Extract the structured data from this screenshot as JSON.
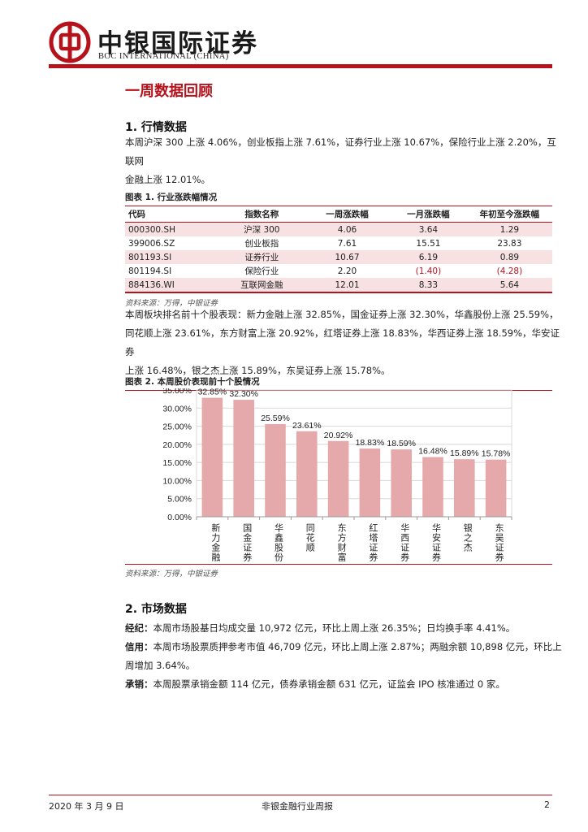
{
  "header": {
    "brand_cn": "中银国际证券",
    "brand_en": "BOC INTERNATIONAL (CHINA)"
  },
  "colors": {
    "accent": "#b5121b",
    "bar": "#e6a9ab",
    "row_shade": "#f8e1e2"
  },
  "section_title": "一周数据回顾",
  "market": {
    "heading": "1. 行情数据",
    "summary": "本周沪深 300 上涨 4.06%，创业板指上涨 7.61%，证券行业上涨 10.67%，保险行业上涨 2.20%，互联网金融上涨 12.01%。",
    "summary_line1": "本周沪深 300 上涨 4.06%，创业板指上涨 7.61%，证券行业上涨 10.67%，保险行业上涨 2.20%，互联网",
    "summary_line2": "金融上涨 12.01%。"
  },
  "table1": {
    "title": "图表 1. 行业涨跌幅情况",
    "headers": [
      "代码",
      "指数名称",
      "一周涨跌幅",
      "一月涨跌幅",
      "年初至今涨跌幅"
    ],
    "rows": [
      [
        "000300.SH",
        "沪深 300",
        "4.06",
        "3.64",
        "1.29"
      ],
      [
        "399006.SZ",
        "创业板指",
        "7.61",
        "15.51",
        "23.83"
      ],
      [
        "801193.SI",
        "证券行业",
        "10.67",
        "6.19",
        "0.89"
      ],
      [
        "801194.SI",
        "保险行业",
        "2.20",
        "(1.40)",
        "(4.28)"
      ],
      [
        "884136.WI",
        "互联网金融",
        "12.01",
        "8.33",
        "5.64"
      ]
    ],
    "source": "资料来源：万得，中银证券"
  },
  "top10_text": {
    "line1": "本周板块排名前十个股表现：新力金融上涨 32.85%，国金证券上涨 32.30%，华鑫股份上涨 25.59%，",
    "line2": "同花顺上涨 23.61%，东方财富上涨 20.92%，红塔证券上涨 18.83%，华西证券上涨 18.59%，华安证券",
    "line3": "上涨 16.48%，银之杰上涨 15.89%，东吴证券上涨 15.78%。"
  },
  "chart_title": "图表 2. 本周股价表现前十个股情况",
  "chart_data": {
    "type": "bar",
    "categories": [
      "新力金融",
      "国金证券",
      "华鑫股份",
      "同花顺",
      "东方财富",
      "红塔证券",
      "华西证券",
      "华安证券",
      "银之杰",
      "东吴证券"
    ],
    "values": [
      32.85,
      32.3,
      25.59,
      23.61,
      20.92,
      18.83,
      18.59,
      16.48,
      15.89,
      15.78
    ],
    "data_labels": [
      "32.85%",
      "32.30%",
      "25.59%",
      "23.61%",
      "20.92%",
      "18.83%",
      "18.59%",
      "16.48%",
      "15.89%",
      "15.78%"
    ],
    "yticks": [
      "0.00%",
      "5.00%",
      "10.00%",
      "15.00%",
      "20.00%",
      "25.00%",
      "30.00%",
      "35.00%"
    ],
    "ylim": [
      0,
      35
    ],
    "grid": true,
    "bar_color": "#e6a9ab"
  },
  "chart_source": "资料来源：万得，中银证券",
  "market_data": {
    "heading": "2. 市场数据",
    "brokerage_label": "经纪：",
    "brokerage_text": "本周市场股基日均成交量 10,972 亿元，环比上周上涨 26.35%；日均换手率 4.41%。",
    "credit_label": "信用：",
    "credit_line1": "本周市场股票质押参考市值 46,709 亿元，环比上周上涨 2.87%；两融余额 10,898 亿元，环比上",
    "credit_line2": "周增加 3.64%。",
    "underwriting_label": "承销：",
    "underwriting_text": "本周股票承销金额 114 亿元，债券承销金额 631 亿元，证监会 IPO 核准通过 0 家。"
  },
  "footer": {
    "date": "2020 年 3 月 9 日",
    "report_name": "非银金融行业周报",
    "page": "2"
  }
}
